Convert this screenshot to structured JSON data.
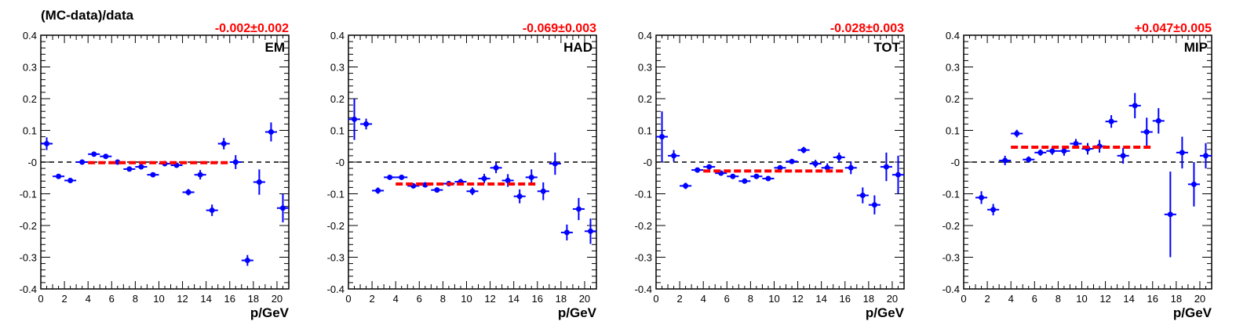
{
  "figure": {
    "ylabel": "(MC-data)/data",
    "xlabel": "p/GeV"
  },
  "chart_data": [
    {
      "type": "scatter",
      "label": "EM",
      "fit_text": "-0.002±0.002",
      "fit_value": -0.002,
      "fit_range": [
        4,
        16
      ],
      "xlim": [
        0,
        21
      ],
      "ylim": [
        -0.4,
        0.4
      ],
      "xticks": [
        "0",
        "2",
        "4",
        "6",
        "8",
        "10",
        "12",
        "14",
        "16",
        "18",
        "20"
      ],
      "yticks": [
        "-0.4",
        "-0.3",
        "-0.2",
        "-0.1",
        "-0",
        "0.1",
        "0.2",
        "0.3",
        "0.4"
      ],
      "points": [
        {
          "x": 0.5,
          "y": 0.058,
          "err": 0.02
        },
        {
          "x": 1.5,
          "y": -0.045,
          "err": 0.007
        },
        {
          "x": 2.5,
          "y": -0.058,
          "err": 0.007
        },
        {
          "x": 3.5,
          "y": 0.0,
          "err": 0.005
        },
        {
          "x": 4.5,
          "y": 0.025,
          "err": 0.006
        },
        {
          "x": 5.5,
          "y": 0.018,
          "err": 0.006
        },
        {
          "x": 6.5,
          "y": 0.0,
          "err": 0.006
        },
        {
          "x": 7.5,
          "y": -0.022,
          "err": 0.006
        },
        {
          "x": 8.5,
          "y": -0.015,
          "err": 0.008
        },
        {
          "x": 9.5,
          "y": -0.04,
          "err": 0.007
        },
        {
          "x": 10.5,
          "y": -0.005,
          "err": 0.007
        },
        {
          "x": 11.5,
          "y": -0.01,
          "err": 0.007
        },
        {
          "x": 12.5,
          "y": -0.095,
          "err": 0.01
        },
        {
          "x": 13.5,
          "y": -0.04,
          "err": 0.015
        },
        {
          "x": 14.5,
          "y": -0.152,
          "err": 0.018
        },
        {
          "x": 15.5,
          "y": 0.058,
          "err": 0.018
        },
        {
          "x": 16.5,
          "y": 0.0,
          "err": 0.022
        },
        {
          "x": 17.5,
          "y": -0.31,
          "err": 0.017
        },
        {
          "x": 18.5,
          "y": -0.063,
          "err": 0.04
        },
        {
          "x": 19.5,
          "y": 0.095,
          "err": 0.03
        },
        {
          "x": 20.5,
          "y": -0.145,
          "err": 0.045
        }
      ]
    },
    {
      "type": "scatter",
      "label": "HAD",
      "fit_text": "-0.069±0.003",
      "fit_value": -0.069,
      "fit_range": [
        4,
        16
      ],
      "xlim": [
        0,
        21
      ],
      "ylim": [
        -0.4,
        0.4
      ],
      "xticks": [
        "0",
        "2",
        "4",
        "6",
        "8",
        "10",
        "12",
        "14",
        "16",
        "18",
        "20"
      ],
      "yticks": [
        "-0.4",
        "-0.3",
        "-0.2",
        "-0.1",
        "-0",
        "0.1",
        "0.2",
        "0.3",
        "0.4"
      ],
      "points": [
        {
          "x": 0.5,
          "y": 0.135,
          "err": 0.065
        },
        {
          "x": 1.5,
          "y": 0.12,
          "err": 0.017
        },
        {
          "x": 2.5,
          "y": -0.09,
          "err": 0.01
        },
        {
          "x": 3.5,
          "y": -0.048,
          "err": 0.006
        },
        {
          "x": 4.5,
          "y": -0.048,
          "err": 0.006
        },
        {
          "x": 5.5,
          "y": -0.075,
          "err": 0.006
        },
        {
          "x": 6.5,
          "y": -0.072,
          "err": 0.006
        },
        {
          "x": 7.5,
          "y": -0.088,
          "err": 0.007
        },
        {
          "x": 8.5,
          "y": -0.068,
          "err": 0.008
        },
        {
          "x": 9.5,
          "y": -0.062,
          "err": 0.009
        },
        {
          "x": 10.5,
          "y": -0.092,
          "err": 0.012
        },
        {
          "x": 11.5,
          "y": -0.052,
          "err": 0.015
        },
        {
          "x": 12.5,
          "y": -0.018,
          "err": 0.017
        },
        {
          "x": 13.5,
          "y": -0.058,
          "err": 0.02
        },
        {
          "x": 14.5,
          "y": -0.108,
          "err": 0.022
        },
        {
          "x": 15.5,
          "y": -0.048,
          "err": 0.025
        },
        {
          "x": 16.5,
          "y": -0.092,
          "err": 0.028
        },
        {
          "x": 17.5,
          "y": -0.005,
          "err": 0.035
        },
        {
          "x": 18.5,
          "y": -0.222,
          "err": 0.025
        },
        {
          "x": 19.5,
          "y": -0.148,
          "err": 0.035
        },
        {
          "x": 20.5,
          "y": -0.218,
          "err": 0.04
        }
      ]
    },
    {
      "type": "scatter",
      "label": "TOT",
      "fit_text": "-0.028±0.003",
      "fit_value": -0.028,
      "fit_range": [
        4,
        16
      ],
      "xlim": [
        0,
        21
      ],
      "ylim": [
        -0.4,
        0.4
      ],
      "xticks": [
        "0",
        "2",
        "4",
        "6",
        "8",
        "10",
        "12",
        "14",
        "16",
        "18",
        "20"
      ],
      "yticks": [
        "-0.4",
        "-0.3",
        "-0.2",
        "-0.1",
        "-0",
        "0.1",
        "0.2",
        "0.3",
        "0.4"
      ],
      "points": [
        {
          "x": 0.5,
          "y": 0.08,
          "err": 0.08
        },
        {
          "x": 1.5,
          "y": 0.02,
          "err": 0.018
        },
        {
          "x": 2.5,
          "y": -0.075,
          "err": 0.01
        },
        {
          "x": 3.5,
          "y": -0.025,
          "err": 0.007
        },
        {
          "x": 4.5,
          "y": -0.015,
          "err": 0.006
        },
        {
          "x": 5.5,
          "y": -0.035,
          "err": 0.006
        },
        {
          "x": 6.5,
          "y": -0.045,
          "err": 0.006
        },
        {
          "x": 7.5,
          "y": -0.06,
          "err": 0.006
        },
        {
          "x": 8.5,
          "y": -0.045,
          "err": 0.007
        },
        {
          "x": 9.5,
          "y": -0.052,
          "err": 0.007
        },
        {
          "x": 10.5,
          "y": -0.018,
          "err": 0.007
        },
        {
          "x": 11.5,
          "y": 0.002,
          "err": 0.008
        },
        {
          "x": 12.5,
          "y": 0.038,
          "err": 0.01
        },
        {
          "x": 13.5,
          "y": -0.005,
          "err": 0.012
        },
        {
          "x": 14.5,
          "y": -0.018,
          "err": 0.014
        },
        {
          "x": 15.5,
          "y": 0.015,
          "err": 0.015
        },
        {
          "x": 16.5,
          "y": -0.018,
          "err": 0.02
        },
        {
          "x": 17.5,
          "y": -0.105,
          "err": 0.025
        },
        {
          "x": 18.5,
          "y": -0.135,
          "err": 0.03
        },
        {
          "x": 19.5,
          "y": -0.015,
          "err": 0.045
        },
        {
          "x": 20.5,
          "y": -0.04,
          "err": 0.06
        }
      ]
    },
    {
      "type": "scatter",
      "label": "MIP",
      "fit_text": "+0.047±0.005",
      "fit_value": 0.047,
      "fit_range": [
        4,
        16
      ],
      "xlim": [
        0,
        21
      ],
      "ylim": [
        -0.4,
        0.4
      ],
      "xticks": [
        "0",
        "2",
        "4",
        "6",
        "8",
        "10",
        "12",
        "14",
        "16",
        "18",
        "20"
      ],
      "yticks": [
        "-0.4",
        "-0.3",
        "-0.2",
        "-0.1",
        "-0",
        "0.1",
        "0.2",
        "0.3",
        "0.4"
      ],
      "points": [
        {
          "x": 1.5,
          "y": -0.112,
          "err": 0.02
        },
        {
          "x": 2.5,
          "y": -0.15,
          "err": 0.018
        },
        {
          "x": 3.5,
          "y": 0.005,
          "err": 0.015
        },
        {
          "x": 4.5,
          "y": 0.09,
          "err": 0.012
        },
        {
          "x": 5.5,
          "y": 0.008,
          "err": 0.01
        },
        {
          "x": 6.5,
          "y": 0.03,
          "err": 0.01
        },
        {
          "x": 7.5,
          "y": 0.035,
          "err": 0.012
        },
        {
          "x": 8.5,
          "y": 0.035,
          "err": 0.015
        },
        {
          "x": 9.5,
          "y": 0.058,
          "err": 0.015
        },
        {
          "x": 10.5,
          "y": 0.042,
          "err": 0.018
        },
        {
          "x": 11.5,
          "y": 0.05,
          "err": 0.02
        },
        {
          "x": 12.5,
          "y": 0.128,
          "err": 0.02
        },
        {
          "x": 13.5,
          "y": 0.02,
          "err": 0.025
        },
        {
          "x": 14.5,
          "y": 0.178,
          "err": 0.04
        },
        {
          "x": 15.5,
          "y": 0.095,
          "err": 0.045
        },
        {
          "x": 16.5,
          "y": 0.13,
          "err": 0.04
        },
        {
          "x": 17.5,
          "y": -0.165,
          "err": 0.135
        },
        {
          "x": 18.5,
          "y": 0.03,
          "err": 0.05
        },
        {
          "x": 19.5,
          "y": -0.07,
          "err": 0.07
        },
        {
          "x": 20.5,
          "y": 0.02,
          "err": 0.04
        }
      ]
    }
  ]
}
